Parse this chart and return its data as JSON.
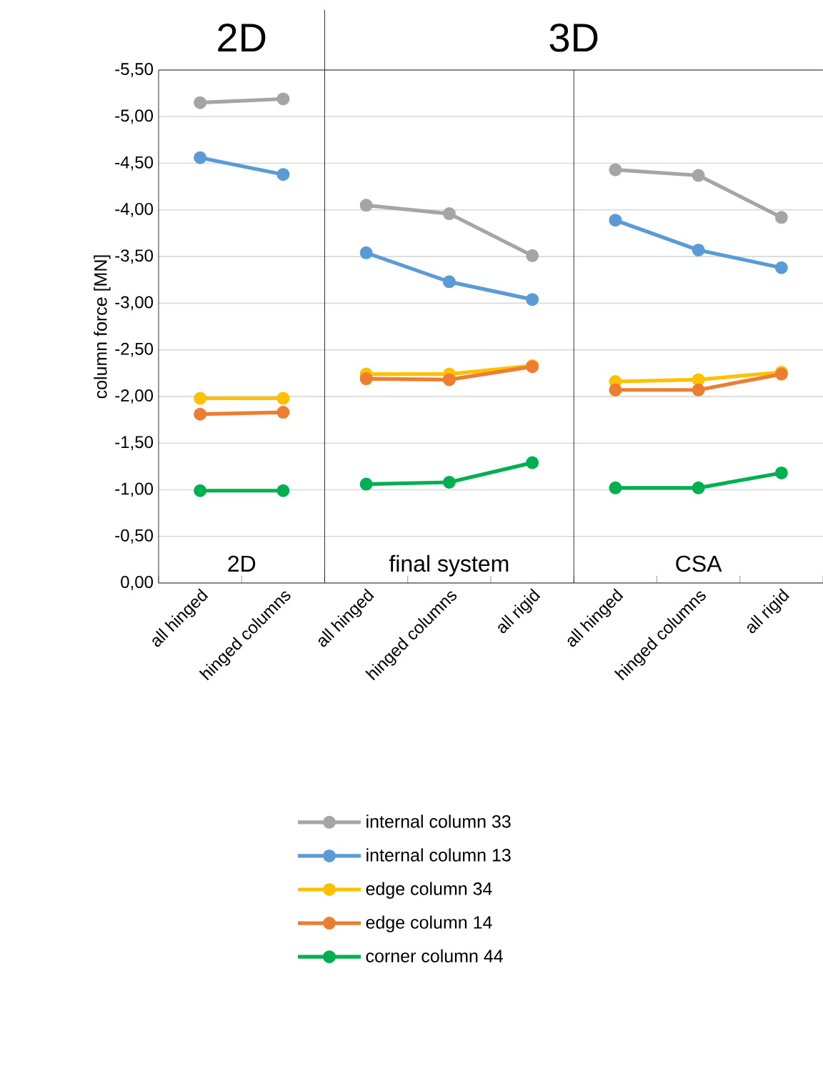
{
  "chart_data": {
    "type": "line",
    "ylabel": "column force [MN]",
    "categories": [
      "all hinged",
      "hinged columns",
      "all hinged",
      "hinged columns",
      "all rigid",
      "all hinged",
      "hinged columns",
      "all rigid"
    ],
    "series": [
      {
        "name": "internal column 33",
        "color": "#a5a5a5",
        "values": [
          -5.15,
          -5.19,
          -4.05,
          -3.96,
          -3.51,
          -4.43,
          -4.37,
          -3.92
        ]
      },
      {
        "name": "internal column 13",
        "color": "#5b9bd5",
        "values": [
          -4.56,
          -4.38,
          -3.54,
          -3.23,
          -3.04,
          -3.89,
          -3.57,
          -3.38
        ]
      },
      {
        "name": "edge column 34",
        "color": "#ffc000",
        "values": [
          -1.98,
          -1.98,
          -2.24,
          -2.24,
          -2.33,
          -2.16,
          -2.18,
          -2.26
        ]
      },
      {
        "name": "edge column 14",
        "color": "#ed7d31",
        "values": [
          -1.81,
          -1.83,
          -2.19,
          -2.18,
          -2.32,
          -2.07,
          -2.07,
          -2.24
        ]
      },
      {
        "name": "corner column 44",
        "color": "#00b050",
        "values": [
          -0.99,
          -0.99,
          -1.06,
          -1.08,
          -1.29,
          -1.02,
          -1.02,
          -1.18
        ]
      }
    ],
    "ylim": [
      0,
      -5.5
    ],
    "yticks": [
      {
        "value": 0,
        "label": "0,00"
      },
      {
        "value": -0.5,
        "label": "-0,50"
      },
      {
        "value": -1,
        "label": "-1,00"
      },
      {
        "value": -1.5,
        "label": "-1,50"
      },
      {
        "value": -2,
        "label": "-2,00"
      },
      {
        "value": -2.5,
        "label": "-2,50"
      },
      {
        "value": -3,
        "label": "-3,00"
      },
      {
        "value": -3.5,
        "label": "-3,50"
      },
      {
        "value": -4,
        "label": "-4,00"
      },
      {
        "value": -4.5,
        "label": "-4,50"
      },
      {
        "value": -5,
        "label": "-5,00"
      },
      {
        "value": -5.5,
        "label": "-5,50"
      }
    ],
    "annotations": [
      "2D",
      "3D",
      "2D",
      "final system",
      "CSA"
    ],
    "grid": "y",
    "legend": "bottom",
    "marker": "circle",
    "line_style": "solid"
  }
}
